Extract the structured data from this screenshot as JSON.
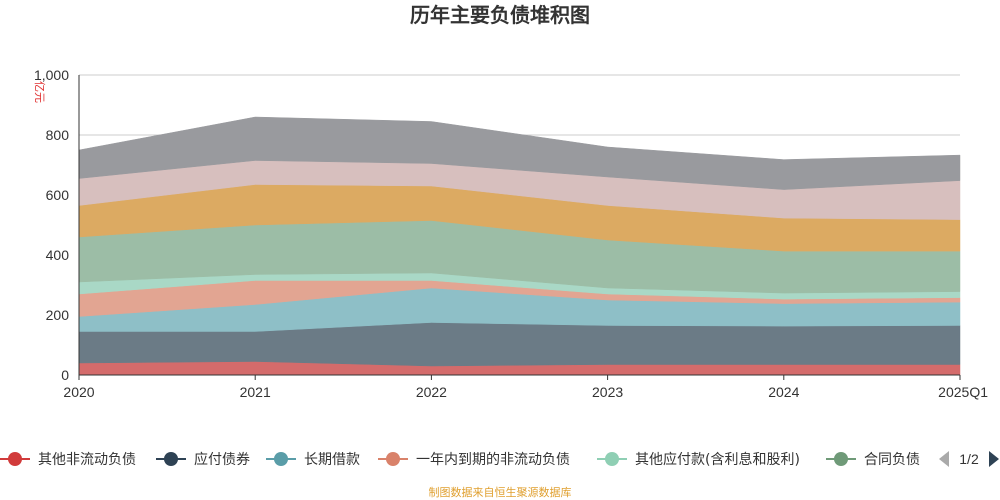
{
  "chart_data": {
    "type": "area",
    "stacked": true,
    "title": "历年主要负债堆积图",
    "unit_label": "亿元",
    "source_note": "制图数据来自恒生聚源数据库",
    "x": [
      "2020",
      "2021",
      "2022",
      "2023",
      "2024",
      "2025Q1"
    ],
    "ylim": [
      0,
      1000
    ],
    "yticks": [
      "0",
      "200",
      "400",
      "600",
      "800",
      "1,000"
    ],
    "grid": true,
    "series": [
      {
        "name": "其他非流动负债",
        "color": "#d46b6b",
        "values": [
          40,
          45,
          30,
          35,
          35,
          35
        ]
      },
      {
        "name": "应付债券",
        "color": "#6b7b86",
        "values": [
          105,
          100,
          145,
          130,
          128,
          130
        ]
      },
      {
        "name": "长期借款",
        "color": "#8ebfc7",
        "values": [
          50,
          90,
          115,
          85,
          75,
          78
        ]
      },
      {
        "name": "一年内到期的非流动负债",
        "color": "#e2a592",
        "values": [
          75,
          80,
          25,
          20,
          15,
          15
        ]
      },
      {
        "name": "其他应付款(含利息和股利)",
        "color": "#a9d8c6",
        "values": [
          40,
          20,
          25,
          20,
          20,
          20
        ]
      },
      {
        "name": "合同负债",
        "color": "#9cbda6",
        "values": [
          150,
          165,
          175,
          160,
          140,
          135
        ]
      },
      {
        "name": "",
        "color": "#dcaa62",
        "values": [
          105,
          135,
          115,
          115,
          110,
          105
        ]
      },
      {
        "name": "",
        "color": "#d7bfbe",
        "values": [
          90,
          80,
          75,
          95,
          95,
          130
        ]
      },
      {
        "name": "",
        "color": "#999a9e",
        "values": [
          95,
          145,
          140,
          100,
          100,
          85
        ]
      }
    ],
    "legend": {
      "items": [
        {
          "label": "其他非流动负债",
          "color": "#d13b3b"
        },
        {
          "label": "应付债券",
          "color": "#2e4254"
        },
        {
          "label": "长期借款",
          "color": "#5a9da8"
        },
        {
          "label": "一年内到期的非流动负债",
          "color": "#d9826a"
        },
        {
          "label": "其他应付款(含利息和股利)",
          "color": "#8fcfb4"
        },
        {
          "label": "合同负债",
          "color": "#6f9a78"
        }
      ],
      "page": "1/2"
    }
  }
}
